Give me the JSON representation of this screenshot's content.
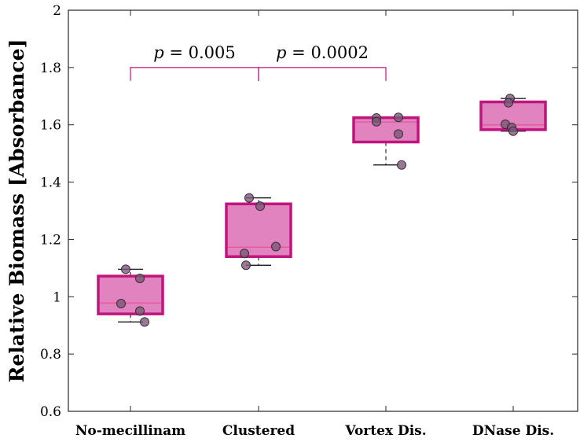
{
  "chart_data": {
    "type": "box",
    "ylabel": "Relative Biomass [Absorbance]",
    "ylim": [
      0.6,
      2
    ],
    "yticks": [
      "0.6",
      "0.8",
      "1",
      "1.2",
      "1.4",
      "1.6",
      "1.8",
      "2"
    ],
    "categories": [
      "No-mecillinam",
      "Clustered",
      "Vortex Dis.",
      "DNase Dis."
    ],
    "box_color": "#c0147e",
    "box_fill": "#e083be",
    "point_color": "#7a5a78",
    "boxes": [
      {
        "q1": 0.94,
        "median": 0.978,
        "q3": 1.072,
        "whisker_low": 0.912,
        "whisker_high": 1.096
      },
      {
        "q1": 1.14,
        "median": 1.173,
        "q3": 1.324,
        "whisker_low": 1.11,
        "whisker_high": 1.345
      },
      {
        "q1": 1.54,
        "median": 1.61,
        "q3": 1.625,
        "whisker_low": 1.46,
        "whisker_high": 1.625
      },
      {
        "q1": 1.583,
        "median": 1.6,
        "q3": 1.68,
        "whisker_low": 1.578,
        "whisker_high": 1.692
      }
    ],
    "points": [
      [
        1.096,
        1.064,
        0.976,
        0.95,
        0.912
      ],
      [
        1.345,
        1.316,
        1.175,
        1.151,
        1.11
      ],
      [
        1.624,
        1.611,
        1.626,
        1.568,
        1.46
      ],
      [
        1.692,
        1.677,
        1.602,
        1.591,
        1.578
      ]
    ],
    "annotations": [
      {
        "text_p": "p",
        "text_rest": " = 0.005",
        "from": 0,
        "to": 1,
        "y": 1.8
      },
      {
        "text_p": "p",
        "text_rest": " = 0.0002",
        "from": 1,
        "to": 2,
        "y": 1.8
      }
    ]
  }
}
